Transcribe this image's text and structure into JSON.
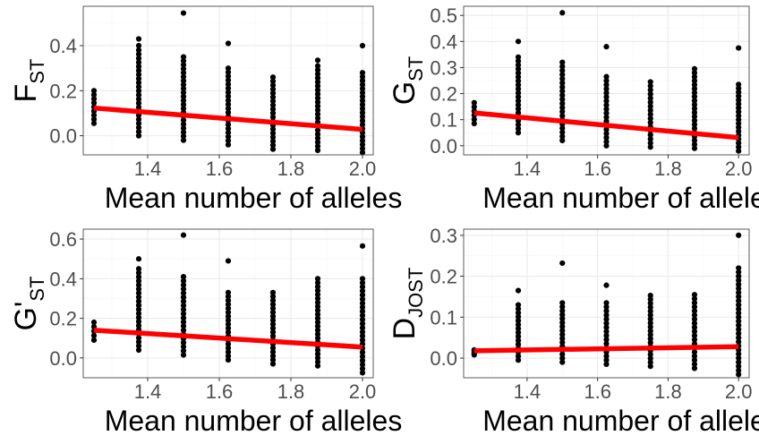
{
  "chart_data": [
    {
      "type": "scatter",
      "xlabel": "Mean number of alleles",
      "ylabel_main": "F",
      "ylabel_sub": "ST",
      "ylabel_prime": "",
      "xlim": [
        1.22,
        2.03
      ],
      "ylim": [
        -0.085,
        0.575
      ],
      "xticks": [
        1.4,
        1.6,
        1.8,
        2.0
      ],
      "xtick_labels": [
        "1.4",
        "1.6",
        "1.8",
        "2.0"
      ],
      "yticks": [
        0.0,
        0.2,
        0.4
      ],
      "ytick_labels": [
        "0.0",
        "0.2",
        "0.4"
      ],
      "columns": [
        {
          "x": 1.25,
          "min": 0.055,
          "max": 0.2,
          "outliers": []
        },
        {
          "x": 1.375,
          "min": 0.0,
          "max": 0.38,
          "outliers": [
            0.4,
            0.43
          ]
        },
        {
          "x": 1.5,
          "min": -0.02,
          "max": 0.35,
          "outliers": [
            0.545
          ]
        },
        {
          "x": 1.625,
          "min": -0.04,
          "max": 0.3,
          "outliers": [
            0.41
          ]
        },
        {
          "x": 1.75,
          "min": -0.06,
          "max": 0.26,
          "outliers": []
        },
        {
          "x": 1.875,
          "min": -0.065,
          "max": 0.31,
          "outliers": [
            0.335
          ]
        },
        {
          "x": 2.0,
          "min": -0.075,
          "max": 0.28,
          "outliers": [
            0.4
          ]
        }
      ],
      "fit_line": {
        "x": [
          1.25,
          2.0
        ],
        "y": [
          0.123,
          0.028
        ]
      },
      "point_color": "#000000",
      "line_color": "#ff0000",
      "grid": true
    },
    {
      "type": "scatter",
      "xlabel": "Mean number of alleles",
      "ylabel_main": "G",
      "ylabel_sub": "ST",
      "ylabel_prime": "",
      "xlim": [
        1.22,
        2.03
      ],
      "ylim": [
        -0.035,
        0.535
      ],
      "xticks": [
        1.4,
        1.6,
        1.8,
        2.0
      ],
      "xtick_labels": [
        "1.4",
        "1.6",
        "1.8",
        "2.0"
      ],
      "yticks": [
        0.0,
        0.1,
        0.2,
        0.3,
        0.4,
        0.5
      ],
      "ytick_labels": [
        "0.0",
        "0.1",
        "0.2",
        "0.3",
        "0.4",
        "0.5"
      ],
      "columns": [
        {
          "x": 1.25,
          "min": 0.085,
          "max": 0.165,
          "outliers": []
        },
        {
          "x": 1.375,
          "min": 0.05,
          "max": 0.34,
          "outliers": [
            0.4
          ]
        },
        {
          "x": 1.5,
          "min": 0.02,
          "max": 0.32,
          "outliers": [
            0.51
          ]
        },
        {
          "x": 1.625,
          "min": 0.0,
          "max": 0.265,
          "outliers": [
            0.38
          ]
        },
        {
          "x": 1.75,
          "min": -0.005,
          "max": 0.245,
          "outliers": []
        },
        {
          "x": 1.875,
          "min": -0.01,
          "max": 0.295,
          "outliers": []
        },
        {
          "x": 2.0,
          "min": -0.02,
          "max": 0.235,
          "outliers": [
            0.375
          ]
        }
      ],
      "fit_line": {
        "x": [
          1.25,
          2.0
        ],
        "y": [
          0.126,
          0.031
        ]
      },
      "point_color": "#000000",
      "line_color": "#ff0000",
      "grid": true
    },
    {
      "type": "scatter",
      "xlabel": "Mean number of alleles",
      "ylabel_main": "G",
      "ylabel_sub": "ST",
      "ylabel_prime": "'",
      "xlim": [
        1.22,
        2.03
      ],
      "ylim": [
        -0.1,
        0.65
      ],
      "xticks": [
        1.4,
        1.6,
        1.8,
        2.0
      ],
      "xtick_labels": [
        "1.4",
        "1.6",
        "1.8",
        "2.0"
      ],
      "yticks": [
        0.0,
        0.2,
        0.4,
        0.6
      ],
      "ytick_labels": [
        "0.0",
        "0.2",
        "0.4",
        "0.6"
      ],
      "columns": [
        {
          "x": 1.25,
          "min": 0.09,
          "max": 0.18,
          "outliers": []
        },
        {
          "x": 1.375,
          "min": 0.04,
          "max": 0.45,
          "outliers": [
            0.5
          ]
        },
        {
          "x": 1.5,
          "min": 0.015,
          "max": 0.41,
          "outliers": [
            0.62
          ]
        },
        {
          "x": 1.625,
          "min": -0.01,
          "max": 0.33,
          "outliers": [
            0.49
          ]
        },
        {
          "x": 1.75,
          "min": -0.03,
          "max": 0.33,
          "outliers": []
        },
        {
          "x": 1.875,
          "min": -0.04,
          "max": 0.4,
          "outliers": []
        },
        {
          "x": 2.0,
          "min": -0.075,
          "max": 0.4,
          "outliers": [
            0.565
          ]
        }
      ],
      "fit_line": {
        "x": [
          1.25,
          2.0
        ],
        "y": [
          0.14,
          0.055
        ]
      },
      "point_color": "#000000",
      "line_color": "#ff0000",
      "grid": true
    },
    {
      "type": "scatter",
      "xlabel": "Mean number of alleles",
      "ylabel_main": "D",
      "ylabel_sub": "JOST",
      "ylabel_prime": "",
      "xlim": [
        1.22,
        2.03
      ],
      "ylim": [
        -0.048,
        0.315
      ],
      "xticks": [
        1.4,
        1.6,
        1.8,
        2.0
      ],
      "xtick_labels": [
        "1.4",
        "1.6",
        "1.8",
        "2.0"
      ],
      "yticks": [
        0.0,
        0.1,
        0.2,
        0.3
      ],
      "ytick_labels": [
        "0.0",
        "0.1",
        "0.2",
        "0.3"
      ],
      "columns": [
        {
          "x": 1.25,
          "min": 0.008,
          "max": 0.02,
          "outliers": []
        },
        {
          "x": 1.375,
          "min": -0.005,
          "max": 0.13,
          "outliers": [
            0.165
          ]
        },
        {
          "x": 1.5,
          "min": -0.01,
          "max": 0.135,
          "outliers": [
            0.232
          ]
        },
        {
          "x": 1.625,
          "min": -0.015,
          "max": 0.135,
          "outliers": [
            0.178
          ]
        },
        {
          "x": 1.75,
          "min": -0.02,
          "max": 0.153,
          "outliers": []
        },
        {
          "x": 1.875,
          "min": -0.025,
          "max": 0.155,
          "outliers": []
        },
        {
          "x": 2.0,
          "min": -0.04,
          "max": 0.22,
          "outliers": [
            0.3
          ]
        }
      ],
      "fit_line": {
        "x": [
          1.25,
          2.0
        ],
        "y": [
          0.018,
          0.028
        ]
      },
      "point_color": "#000000",
      "line_color": "#ff0000",
      "grid": true
    }
  ]
}
